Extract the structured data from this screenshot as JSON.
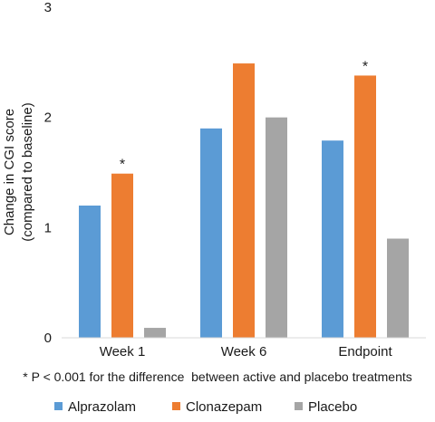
{
  "chart_data": {
    "type": "bar",
    "categories": [
      "Week 1",
      "Week 6",
      "Endpoint"
    ],
    "series": [
      {
        "name": "Alprazolam",
        "color": "#5b9bd5",
        "values": [
          1.2,
          1.9,
          1.79
        ]
      },
      {
        "name": "Clonazepam",
        "color": "#ed7d31",
        "values": [
          1.49,
          2.49,
          2.38
        ]
      },
      {
        "name": "Placebo",
        "color": "#a5a5a5",
        "values": [
          0.09,
          2.0,
          0.9
        ]
      }
    ],
    "ylabel_line1": "Change in CGI score",
    "ylabel_line2": "(compared to baseline)",
    "ylim": [
      0,
      3
    ],
    "yticks": [
      0,
      1,
      2,
      3
    ],
    "grid": false,
    "annotations": [
      {
        "category": "Week 1",
        "series": "Clonazepam",
        "text": "*"
      },
      {
        "category": "Endpoint",
        "series": "Clonazepam",
        "text": "*"
      }
    ],
    "footnote": "* P < 0.001 for the difference  between active and placebo treatments",
    "legend_position": "bottom"
  }
}
